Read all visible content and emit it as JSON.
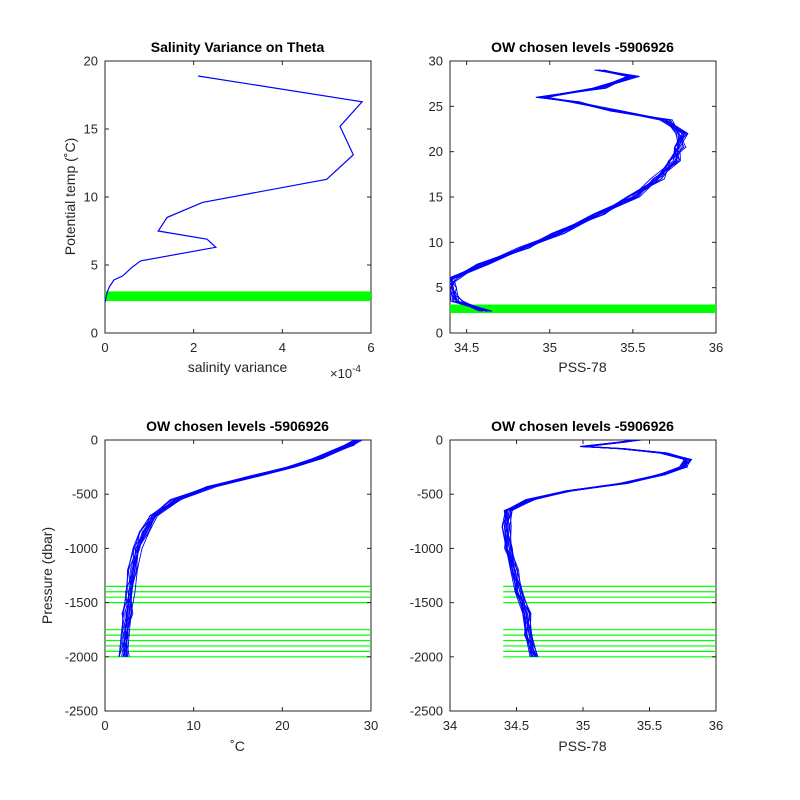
{
  "chart_data": [
    {
      "type": "line",
      "title": "Salinity Variance on Theta",
      "xlabel": "salinity variance",
      "ylabel": "Potential temp (˚C)",
      "x_exponent_label": "×10",
      "x_exponent_power": "-4",
      "xlim": [
        0,
        6
      ],
      "ylim": [
        0,
        20
      ],
      "xticks": [
        "0",
        "2",
        "4",
        "6"
      ],
      "yticks": [
        "0",
        "5",
        "10",
        "15",
        "20"
      ],
      "grid": false,
      "series": [
        {
          "color": "#0000ff",
          "points": [
            [
              2.1,
              18.9
            ],
            [
              5.8,
              17.0
            ],
            [
              5.3,
              15.2
            ],
            [
              5.6,
              13.1
            ],
            [
              5.0,
              11.3
            ],
            [
              2.2,
              9.6
            ],
            [
              1.4,
              8.5
            ],
            [
              1.2,
              7.5
            ],
            [
              2.3,
              6.9
            ],
            [
              2.5,
              6.3
            ],
            [
              0.8,
              5.3
            ],
            [
              0.6,
              4.8
            ],
            [
              0.4,
              4.2
            ],
            [
              0.2,
              3.9
            ],
            [
              0.1,
              3.4
            ],
            [
              0.05,
              3.0
            ],
            [
              0.02,
              2.6
            ],
            [
              0.01,
              2.3
            ]
          ]
        }
      ],
      "highlight_levels": {
        "color": "#00ff00",
        "values": [
          2.4,
          2.5,
          2.6,
          2.7,
          2.8,
          2.9,
          3.0
        ]
      }
    },
    {
      "type": "line",
      "title": "OW chosen levels -5906926",
      "xlabel": "PSS-78",
      "ylabel": "",
      "xlim": [
        34.4,
        36
      ],
      "ylim": [
        0,
        30
      ],
      "xticks": [
        "34.5",
        "35",
        "35.5",
        "36"
      ],
      "yticks": [
        "0",
        "5",
        "10",
        "15",
        "20",
        "25",
        "30"
      ],
      "grid": false,
      "profile": {
        "color": "#0000ff",
        "points": [
          [
            34.62,
            2.4
          ],
          [
            34.45,
            3.5
          ],
          [
            34.4,
            5.0
          ],
          [
            34.42,
            6.0
          ],
          [
            34.6,
            7.6
          ],
          [
            34.85,
            9.4
          ],
          [
            35.05,
            11.0
          ],
          [
            35.3,
            13.1
          ],
          [
            35.5,
            15.0
          ],
          [
            35.65,
            17.0
          ],
          [
            35.75,
            19.0
          ],
          [
            35.78,
            20.5
          ],
          [
            35.8,
            22.0
          ],
          [
            35.7,
            23.5
          ],
          [
            35.4,
            24.5
          ],
          [
            35.15,
            25.5
          ],
          [
            34.95,
            26.0
          ],
          [
            35.3,
            27.0
          ],
          [
            35.5,
            28.3
          ],
          [
            35.3,
            29.0
          ]
        ]
      },
      "highlight_levels": {
        "color": "#00ff00",
        "values": [
          2.3,
          2.45,
          2.6,
          2.75,
          2.9,
          3.05
        ]
      }
    },
    {
      "type": "line",
      "title": "OW chosen levels -5906926",
      "xlabel": "˚C",
      "ylabel": "Pressure (dbar)",
      "xlim": [
        0,
        30
      ],
      "ylim": [
        -2500,
        0
      ],
      "xticks": [
        "0",
        "10",
        "20",
        "30"
      ],
      "yticks": [
        "-2500",
        "-2000",
        "-1500",
        "-1000",
        "-500",
        "0"
      ],
      "grid": false,
      "profile": {
        "color": "#0000ff",
        "points": [
          [
            2.1,
            -2000
          ],
          [
            2.3,
            -1800
          ],
          [
            2.5,
            -1600
          ],
          [
            2.8,
            -1400
          ],
          [
            3.1,
            -1200
          ],
          [
            3.6,
            -1000
          ],
          [
            4.4,
            -850
          ],
          [
            5.5,
            -700
          ],
          [
            8.0,
            -550
          ],
          [
            12.0,
            -430
          ],
          [
            17.0,
            -330
          ],
          [
            21.0,
            -250
          ],
          [
            24.0,
            -170
          ],
          [
            26.0,
            -100
          ],
          [
            27.5,
            -50
          ],
          [
            28.5,
            0
          ]
        ]
      },
      "highlight_levels": {
        "color": "#00ff00",
        "values": [
          -1350,
          -1400,
          -1450,
          -1500,
          -1750,
          -1800,
          -1850,
          -1900,
          -1950,
          -2000
        ]
      }
    },
    {
      "type": "line",
      "title": "OW chosen levels -5906926",
      "xlabel": "PSS-78",
      "ylabel": "",
      "xlim": [
        34,
        36
      ],
      "ylim": [
        -2500,
        0
      ],
      "xticks": [
        "34",
        "34.5",
        "35",
        "35.5",
        "36"
      ],
      "yticks": [
        "-2500",
        "-2000",
        "-1500",
        "-1000",
        "-500",
        "0"
      ],
      "grid": false,
      "profile": {
        "color": "#0000ff",
        "points": [
          [
            34.63,
            -2000
          ],
          [
            34.6,
            -1800
          ],
          [
            34.57,
            -1600
          ],
          [
            34.53,
            -1400
          ],
          [
            34.48,
            -1200
          ],
          [
            34.45,
            -1000
          ],
          [
            34.42,
            -800
          ],
          [
            34.45,
            -650
          ],
          [
            34.6,
            -550
          ],
          [
            34.9,
            -470
          ],
          [
            35.3,
            -400
          ],
          [
            35.6,
            -320
          ],
          [
            35.75,
            -250
          ],
          [
            35.8,
            -180
          ],
          [
            35.6,
            -120
          ],
          [
            35.3,
            -80
          ],
          [
            35.0,
            -60
          ],
          [
            35.3,
            -20
          ],
          [
            35.4,
            0
          ]
        ]
      },
      "highlight_levels": {
        "color": "#00ff00",
        "values": [
          -1350,
          -1400,
          -1450,
          -1500,
          -1750,
          -1800,
          -1850,
          -1900,
          -1950,
          -2000
        ]
      }
    }
  ]
}
